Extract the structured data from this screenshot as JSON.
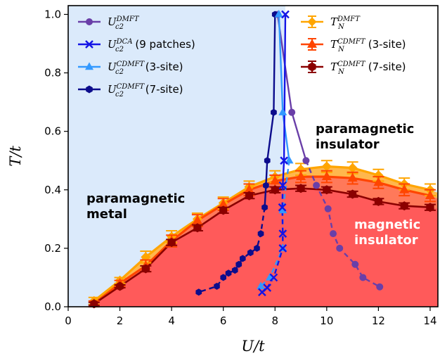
{
  "chart_data": {
    "type": "line",
    "xlabel": "U/t",
    "ylabel": "T/t",
    "xlim": [
      0,
      14.3
    ],
    "ylim": [
      0,
      1.03
    ],
    "xticks": [
      "0",
      "2",
      "4",
      "6",
      "8",
      "10",
      "12",
      "14"
    ],
    "yticks": [
      "0.0",
      "0.2",
      "0.4",
      "0.6",
      "0.8",
      "1.0"
    ],
    "grid": false,
    "colors": {
      "paramagnetic_metal_fill": "#dbeafb",
      "magnetic_fill": "#ff5a5a",
      "orange_band": "#ffb74d",
      "dmft": "#6a3fa8",
      "dca": "#1414e6",
      "cdmft3": "#3399ff",
      "cdmft7": "#0c0c8c",
      "tn_dmft": "#ffa500",
      "tn_cdmft3": "#ff4500",
      "tn_cdmft7": "#8b0000"
    },
    "regions": {
      "paramagnetic_metal": "paramagnetic\nmetal",
      "paramagnetic_insulator": "paramagnetic\ninsulator",
      "magnetic_insulator": "magnetic\ninsulator"
    },
    "legend_left": [
      {
        "key": "dmft",
        "base": "U",
        "sub": "c2",
        "sup": "DMFT",
        "extra": ""
      },
      {
        "key": "dca",
        "base": "U",
        "sub": "c2",
        "sup": "DCA",
        "extra": " (9 patches)"
      },
      {
        "key": "cdmft3",
        "base": "U",
        "sub": "c2",
        "sup": "CDMFT",
        "extra": " (3-site)"
      },
      {
        "key": "cdmft7",
        "base": "U",
        "sub": "c2",
        "sup": "CDMFT",
        "extra": " (7-site)"
      }
    ],
    "legend_right": [
      {
        "key": "tn_dmft",
        "base": "T",
        "sub": "N",
        "sup": "DMFT",
        "extra": ""
      },
      {
        "key": "tn_cdmft3",
        "base": "T",
        "sub": "N",
        "sup": "CDMFT",
        "extra": " (3-site)"
      },
      {
        "key": "tn_cdmft7",
        "base": "T",
        "sub": "N",
        "sup": "CDMFT",
        "extra": " (7-site)"
      }
    ],
    "series": {
      "tn_dmft": {
        "x": [
          1,
          2,
          3,
          4,
          5,
          6,
          7,
          8,
          9,
          10,
          11,
          12,
          13,
          14
        ],
        "y": [
          0.02,
          0.09,
          0.17,
          0.24,
          0.3,
          0.355,
          0.41,
          0.445,
          0.47,
          0.48,
          0.475,
          0.45,
          0.42,
          0.4
        ],
        "err": [
          0.012,
          0.01,
          0.02,
          0.02,
          0.02,
          0.02,
          0.02,
          0.02,
          0.02,
          0.02,
          0.02,
          0.02,
          0.02,
          0.02
        ]
      },
      "tn_cdmft3": {
        "x": [
          1,
          2,
          3,
          4,
          5,
          6,
          7,
          8,
          9,
          10,
          11,
          12,
          13,
          14
        ],
        "y": [
          0.01,
          0.08,
          0.14,
          0.225,
          0.295,
          0.35,
          0.4,
          0.43,
          0.445,
          0.445,
          0.44,
          0.425,
          0.4,
          0.38
        ],
        "err": [
          0.01,
          0.01,
          0.02,
          0.02,
          0.02,
          0.02,
          0.02,
          0.02,
          0.02,
          0.02,
          0.02,
          0.02,
          0.02,
          0.02
        ]
      },
      "tn_cdmft7": {
        "x": [
          1,
          2,
          3,
          4,
          5,
          6,
          7,
          8,
          9,
          10,
          11,
          12,
          13,
          14
        ],
        "y": [
          0.01,
          0.07,
          0.13,
          0.22,
          0.27,
          0.33,
          0.38,
          0.4,
          0.405,
          0.4,
          0.385,
          0.36,
          0.345,
          0.34
        ],
        "err": [
          0.005,
          0.005,
          0.01,
          0.01,
          0.01,
          0.01,
          0.01,
          0.01,
          0.01,
          0.01,
          0.01,
          0.01,
          0.01,
          0.01
        ]
      },
      "dmft": {
        "solid": {
          "x": [
            8.1,
            8.65,
            9.2
          ],
          "y": [
            1.0,
            0.665,
            0.5
          ]
        },
        "dashed": {
          "x": [
            9.2,
            9.6,
            10.05,
            10.25,
            10.5,
            11.1,
            11.4,
            12.05
          ],
          "y": [
            0.5,
            0.415,
            0.335,
            0.25,
            0.2,
            0.145,
            0.1,
            0.068
          ]
        }
      },
      "dca": {
        "solid": {
          "x": [
            8.4,
            8.35,
            8.3
          ],
          "y": [
            1.0,
            0.5,
            0.415
          ]
        },
        "dashed": {
          "x": [
            8.3,
            8.28,
            8.3,
            8.3,
            7.95,
            7.7,
            7.5
          ],
          "y": [
            0.415,
            0.34,
            0.25,
            0.2,
            0.1,
            0.065,
            0.05
          ]
        }
      },
      "cdmft3": {
        "solid": {
          "x": [
            8.15,
            8.3,
            8.55
          ],
          "y": [
            1.0,
            0.665,
            0.5
          ]
        },
        "dashed": {
          "x": [
            8.55,
            8.3,
            8.3,
            7.8,
            7.45
          ],
          "y": [
            0.5,
            0.33,
            0.2,
            0.1,
            0.07
          ]
        }
      },
      "cdmft7": {
        "solid": {
          "x": [
            8.0,
            7.95,
            7.7,
            7.65,
            7.6
          ],
          "y": [
            1.0,
            0.665,
            0.5,
            0.415,
            0.34
          ]
        },
        "dashed": {
          "x": [
            7.6,
            7.45,
            7.3,
            7.05,
            6.75,
            6.6,
            6.45,
            6.2,
            6.0,
            5.75,
            5.05
          ],
          "y": [
            0.34,
            0.25,
            0.2,
            0.185,
            0.165,
            0.145,
            0.125,
            0.115,
            0.1,
            0.07,
            0.05
          ]
        }
      }
    }
  }
}
